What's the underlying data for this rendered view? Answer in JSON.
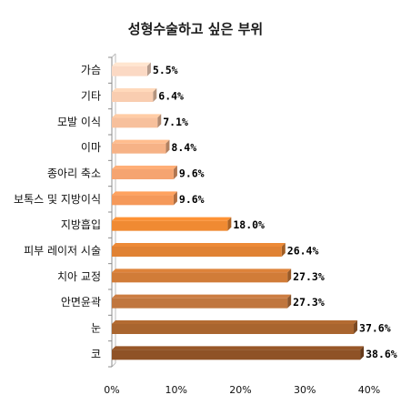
{
  "chart_data": {
    "type": "bar",
    "orientation": "horizontal",
    "title": "성형수술하고 싶은 부위",
    "xlabel": "",
    "ylabel": "",
    "xlim": [
      0,
      40
    ],
    "x_ticks": [
      "0%",
      "10%",
      "20%",
      "30%",
      "40%"
    ],
    "categories": [
      "가슴",
      "기타",
      "모발 이식",
      "이마",
      "종아리 축소",
      "보톡스 및 지방이식",
      "지방흡입",
      "피부 레이저 시술",
      "치아 교정",
      "안면윤곽",
      "눈",
      "코"
    ],
    "values": [
      5.5,
      6.4,
      7.1,
      8.4,
      9.6,
      9.6,
      18.0,
      26.4,
      27.3,
      27.3,
      37.6,
      38.6
    ],
    "value_labels": [
      "5.5%",
      "6.4%",
      "7.1%",
      "8.4%",
      "9.6%",
      "9.6%",
      "18.0%",
      "26.4%",
      "27.3%",
      "27.3%",
      "37.6%",
      "38.6%"
    ],
    "colors": [
      "#fbd9c4",
      "#f9cdb0",
      "#f7c09c",
      "#f6b286",
      "#f5a470",
      "#f5995a",
      "#f08a32",
      "#e08234",
      "#d17c38",
      "#c0763e",
      "#a9652f",
      "#8f5226"
    ],
    "grid": false,
    "legend": "none"
  }
}
